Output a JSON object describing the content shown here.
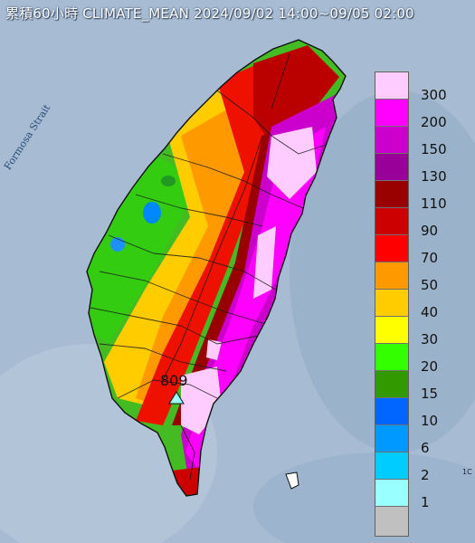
{
  "title": "累積60小時 CLIMATE_MEAN 2024/09/02 14:00~09/05 02:00",
  "strait_label": "Formosa Strait",
  "max_station": {
    "value": "809"
  },
  "corner_mark": "1C",
  "legend": [
    {
      "label": "300",
      "color": "#ffccff"
    },
    {
      "label": "200",
      "color": "#ff00ff"
    },
    {
      "label": "150",
      "color": "#cc00cc"
    },
    {
      "label": "130",
      "color": "#990099"
    },
    {
      "label": "110",
      "color": "#990000"
    },
    {
      "label": "90",
      "color": "#cc0000"
    },
    {
      "label": "70",
      "color": "#ff0000"
    },
    {
      "label": "50",
      "color": "#ff9900"
    },
    {
      "label": "40",
      "color": "#ffcc00"
    },
    {
      "label": "30",
      "color": "#ffff00"
    },
    {
      "label": "20",
      "color": "#33ff00"
    },
    {
      "label": "15",
      "color": "#339900"
    },
    {
      "label": "10",
      "color": "#0066ff"
    },
    {
      "label": "6",
      "color": "#0099ff"
    },
    {
      "label": "2",
      "color": "#00ccff"
    },
    {
      "label": "1",
      "color": "#99ffff"
    },
    {
      "label": "",
      "color": "#c0c0c0"
    }
  ]
}
